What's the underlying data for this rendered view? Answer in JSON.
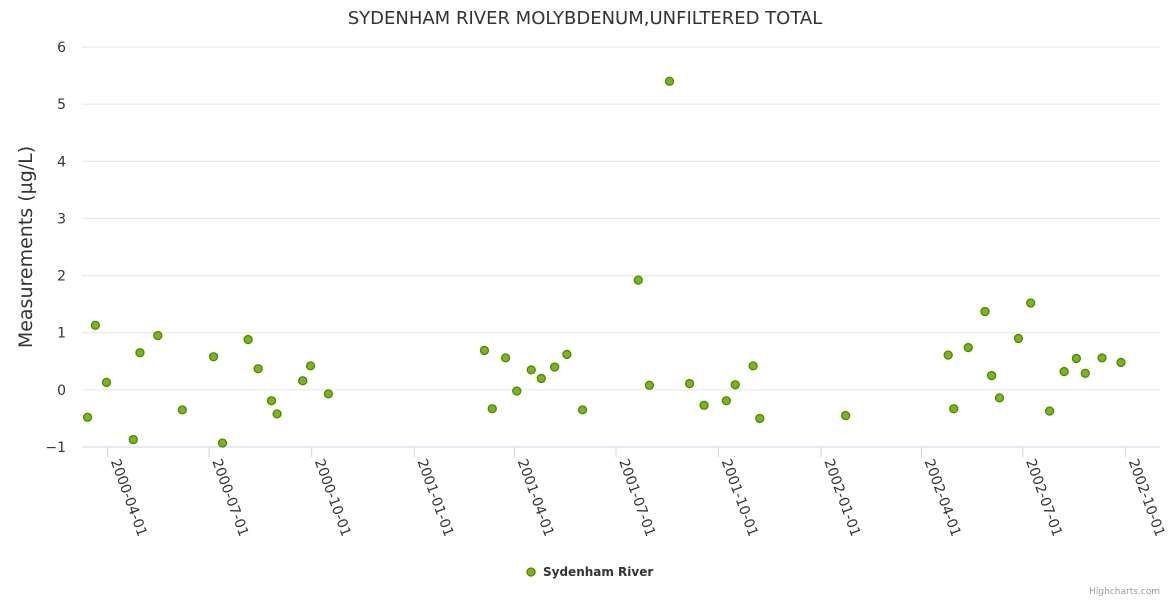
{
  "chart_data": {
    "type": "scatter",
    "title": "SYDENHAM RIVER MOLYBDENUM,UNFILTERED TOTAL",
    "xlabel": "",
    "ylabel": "Measurements (µg/L)",
    "ylim": [
      -1,
      6
    ],
    "yticks": [
      -1,
      0,
      1,
      2,
      3,
      4,
      5,
      6
    ],
    "xlim": [
      "2000-03-09",
      "2002-11-01"
    ],
    "xticks": [
      "2000-04-01",
      "2000-07-01",
      "2000-10-01",
      "2001-01-01",
      "2001-04-01",
      "2001-07-01",
      "2001-10-01",
      "2002-01-01",
      "2002-04-01",
      "2002-07-01",
      "2002-10-01"
    ],
    "grid": true,
    "legend_position": "bottom-center",
    "series": [
      {
        "name": "Sydenham River",
        "color": "#7cb518",
        "border_color": "#4a8a00",
        "points": [
          {
            "x": "2000-03-14",
            "y": -0.48
          },
          {
            "x": "2000-03-21",
            "y": 1.13
          },
          {
            "x": "2000-03-31",
            "y": 0.13
          },
          {
            "x": "2000-04-24",
            "y": -0.87
          },
          {
            "x": "2000-04-30",
            "y": 0.65
          },
          {
            "x": "2000-05-16",
            "y": 0.95
          },
          {
            "x": "2000-06-07",
            "y": -0.35
          },
          {
            "x": "2000-07-05",
            "y": 0.58
          },
          {
            "x": "2000-07-13",
            "y": -0.93
          },
          {
            "x": "2000-08-05",
            "y": 0.88
          },
          {
            "x": "2000-08-14",
            "y": 0.37
          },
          {
            "x": "2000-08-26",
            "y": -0.19
          },
          {
            "x": "2000-08-31",
            "y": -0.42
          },
          {
            "x": "2000-09-23",
            "y": 0.16
          },
          {
            "x": "2000-09-30",
            "y": 0.42
          },
          {
            "x": "2000-10-16",
            "y": -0.07
          },
          {
            "x": "2001-03-05",
            "y": 0.69
          },
          {
            "x": "2001-03-12",
            "y": -0.33
          },
          {
            "x": "2001-03-24",
            "y": 0.56
          },
          {
            "x": "2001-04-03",
            "y": -0.02
          },
          {
            "x": "2001-04-16",
            "y": 0.35
          },
          {
            "x": "2001-04-25",
            "y": 0.2
          },
          {
            "x": "2001-05-07",
            "y": 0.4
          },
          {
            "x": "2001-05-18",
            "y": 0.62
          },
          {
            "x": "2001-06-01",
            "y": -0.35
          },
          {
            "x": "2001-07-21",
            "y": 1.92
          },
          {
            "x": "2001-07-31",
            "y": 0.08
          },
          {
            "x": "2001-08-18",
            "y": 5.4
          },
          {
            "x": "2001-09-05",
            "y": 0.11
          },
          {
            "x": "2001-09-18",
            "y": -0.27
          },
          {
            "x": "2001-10-08",
            "y": -0.19
          },
          {
            "x": "2001-10-16",
            "y": 0.09
          },
          {
            "x": "2001-11-01",
            "y": 0.42
          },
          {
            "x": "2001-11-07",
            "y": -0.5
          },
          {
            "x": "2002-01-23",
            "y": -0.45
          },
          {
            "x": "2002-04-25",
            "y": 0.61
          },
          {
            "x": "2002-04-30",
            "y": -0.33
          },
          {
            "x": "2002-05-13",
            "y": 0.74
          },
          {
            "x": "2002-05-28",
            "y": 1.37
          },
          {
            "x": "2002-06-03",
            "y": 0.25
          },
          {
            "x": "2002-06-10",
            "y": -0.14
          },
          {
            "x": "2002-06-27",
            "y": 0.9
          },
          {
            "x": "2002-07-08",
            "y": 1.52
          },
          {
            "x": "2002-07-25",
            "y": -0.37
          },
          {
            "x": "2002-08-07",
            "y": 0.32
          },
          {
            "x": "2002-08-18",
            "y": 0.55
          },
          {
            "x": "2002-08-26",
            "y": 0.29
          },
          {
            "x": "2002-09-10",
            "y": 0.56
          },
          {
            "x": "2002-09-27",
            "y": 0.48
          }
        ]
      }
    ]
  },
  "credits": "Highcharts.com"
}
